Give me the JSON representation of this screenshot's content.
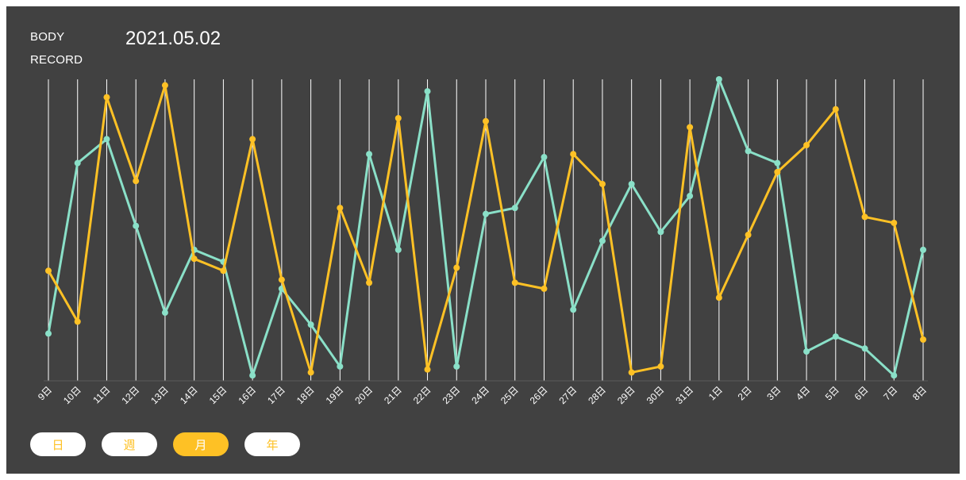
{
  "header": {
    "title_line1": "BODY",
    "title_line2": "RECORD",
    "date": "2021.05.02"
  },
  "period_buttons": [
    {
      "label": "日",
      "active": false
    },
    {
      "label": "週",
      "active": false
    },
    {
      "label": "月",
      "active": true
    },
    {
      "label": "年",
      "active": false
    }
  ],
  "chart_data": {
    "type": "line",
    "x": [
      "9日",
      "10日",
      "11日",
      "12日",
      "13日",
      "14日",
      "15日",
      "16日",
      "17日",
      "18日",
      "19日",
      "20日",
      "21日",
      "22日",
      "23日",
      "24日",
      "25日",
      "26日",
      "27日",
      "28日",
      "29日",
      "30日",
      "31日",
      "1日",
      "2日",
      "3日",
      "4日",
      "5日",
      "6日",
      "7日",
      "8日"
    ],
    "series": [
      {
        "color": "#fec125",
        "values": [
          36,
          19,
          94,
          66,
          98,
          40,
          36,
          80,
          33,
          2,
          57,
          32,
          87,
          3,
          37,
          86,
          32,
          30,
          75,
          65,
          2,
          4,
          84,
          27,
          48,
          69,
          78,
          90,
          54,
          52,
          13
        ]
      },
      {
        "color": "#8ae0c8",
        "values": [
          15,
          72,
          80,
          51,
          22,
          43,
          39,
          1,
          30,
          18,
          4,
          75,
          43,
          96,
          4,
          55,
          57,
          74,
          23,
          46,
          65,
          49,
          61,
          100,
          76,
          72,
          9,
          14,
          10,
          1,
          43
        ]
      }
    ],
    "ylim": [
      0,
      100
    ],
    "grid": "vertical"
  }
}
